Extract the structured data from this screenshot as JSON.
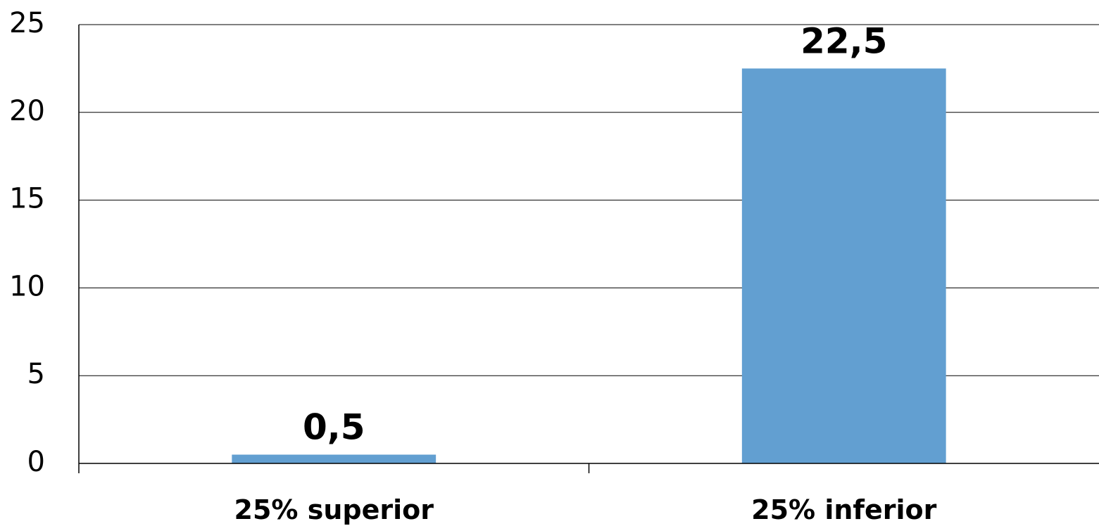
{
  "chart_data": {
    "type": "bar",
    "categories": [
      "25% superior",
      "25% inferior"
    ],
    "values": [
      0.5,
      22.5
    ],
    "data_labels": [
      "0,5",
      "22,5"
    ],
    "ylim": [
      0,
      25
    ],
    "yticks": [
      0,
      5,
      10,
      15,
      20,
      25
    ],
    "ytick_labels": [
      "0",
      "5",
      "10",
      "15",
      "20",
      "25"
    ],
    "grid": true,
    "legend": "none",
    "bar_color": "#629FD1"
  }
}
